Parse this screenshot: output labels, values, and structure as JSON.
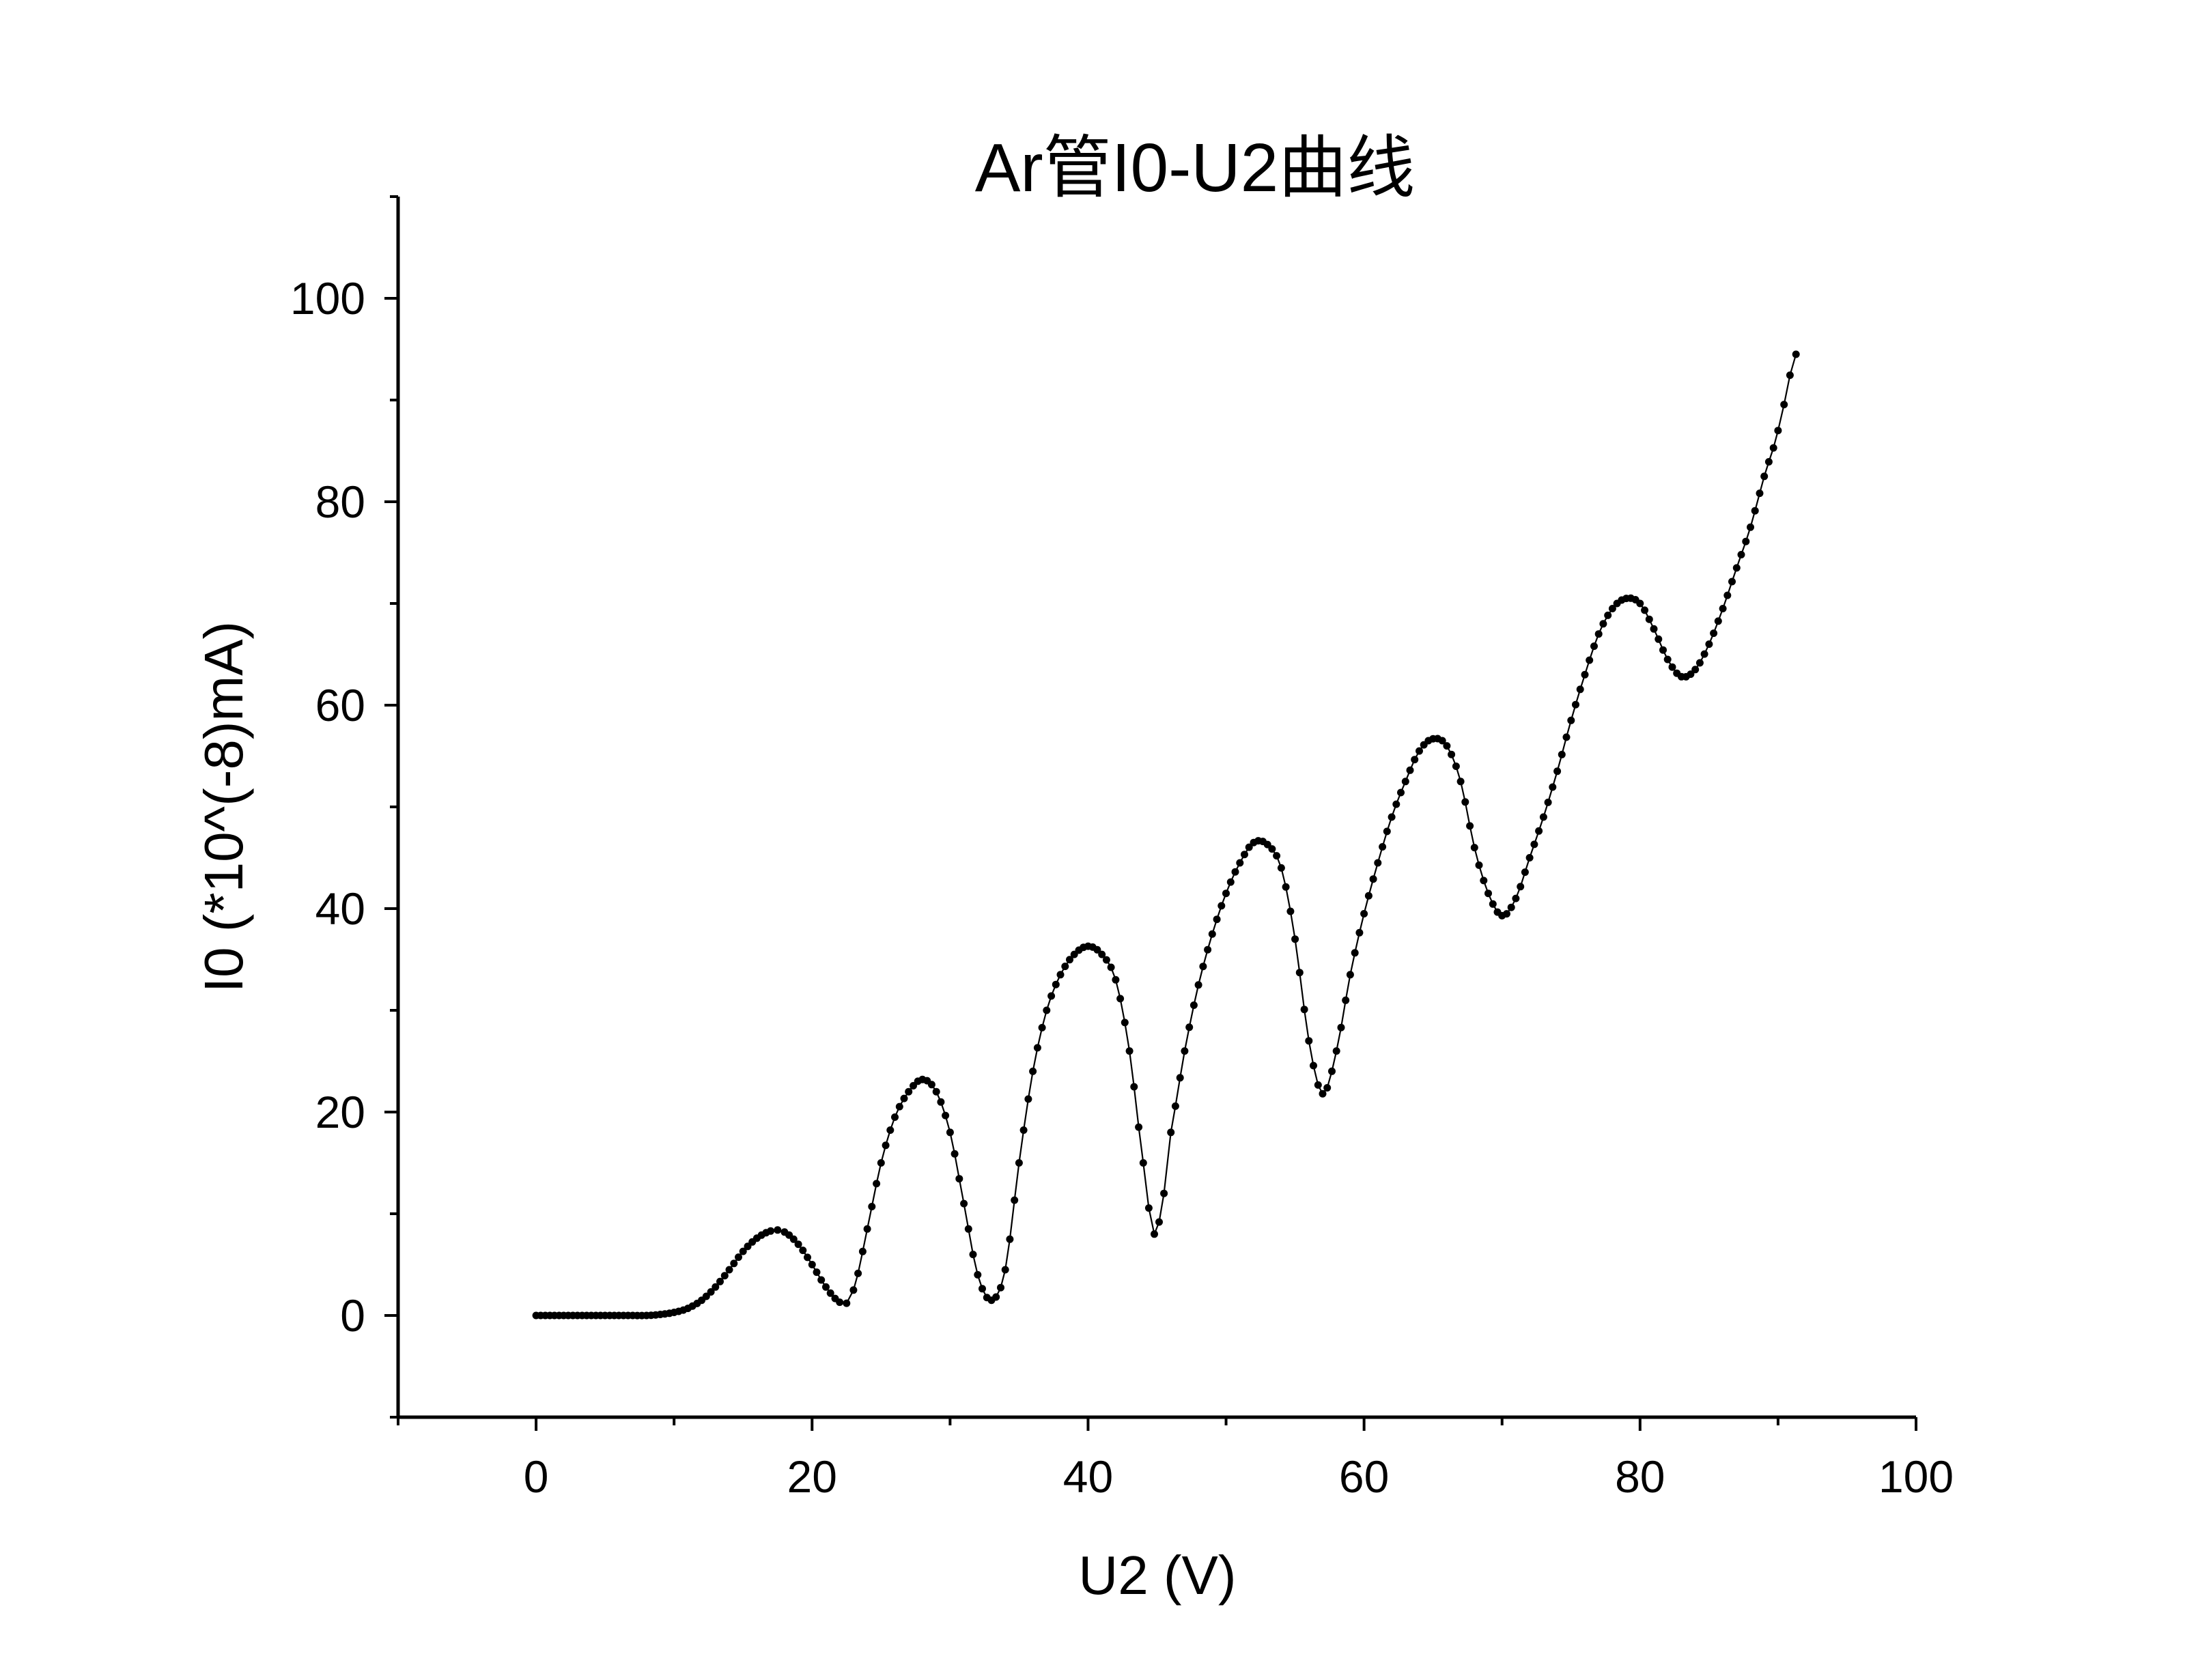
{
  "chart_data": {
    "type": "scatter",
    "title": "Ar管I0-U2曲线",
    "xlabel": "U2 (V)",
    "ylabel": "I0 (*10^(-8)mA)",
    "xlim": [
      -10,
      100
    ],
    "ylim": [
      -10,
      110
    ],
    "x_ticks": [
      "0",
      "20",
      "40",
      "60",
      "80",
      "100"
    ],
    "y_ticks": [
      "0",
      "20",
      "40",
      "60",
      "80",
      "100"
    ],
    "grid": false,
    "legend": "none",
    "marker_color": "#000000",
    "line_color": "#000000",
    "series": [
      {
        "x": [
          0,
          1,
          2,
          3,
          4,
          5,
          6,
          7,
          8,
          9,
          10,
          11,
          12,
          13,
          14,
          15,
          16,
          17,
          17.5,
          18,
          19,
          20,
          21,
          22,
          22.5,
          23,
          24,
          25,
          26,
          27,
          28,
          29,
          30,
          31,
          32,
          33,
          34,
          35,
          36,
          37,
          38,
          39,
          40,
          41,
          42,
          43,
          44,
          44.8,
          45.5,
          46,
          47,
          48,
          49,
          50,
          51,
          52,
          53,
          54,
          55,
          56,
          57,
          58,
          59,
          60,
          61,
          62,
          63,
          64,
          65,
          66,
          67,
          68,
          69,
          70,
          71,
          72,
          73,
          74,
          75,
          76,
          77,
          78,
          79,
          80,
          81,
          82,
          83,
          84,
          85,
          86,
          87,
          88,
          89,
          90,
          91.3
        ],
        "y": [
          0,
          0,
          0,
          0,
          0,
          0,
          0,
          0,
          0,
          0.1,
          0.3,
          0.7,
          1.5,
          2.8,
          4.5,
          6.3,
          7.6,
          8.3,
          8.4,
          8.2,
          7.0,
          5.0,
          2.8,
          1.3,
          1.2,
          2.5,
          8.5,
          15.0,
          19.5,
          22.0,
          23.2,
          22.0,
          18.0,
          11.0,
          4.0,
          1.5,
          4.5,
          15.0,
          24.0,
          30.0,
          33.5,
          35.5,
          36.3,
          35.5,
          33.0,
          26.0,
          15.0,
          8.0,
          12.0,
          18.0,
          26.0,
          32.5,
          37.5,
          41.5,
          44.5,
          46.5,
          46.3,
          44.0,
          37.0,
          27.0,
          21.8,
          26.0,
          33.5,
          39.5,
          44.5,
          49.0,
          52.5,
          55.5,
          56.7,
          56.0,
          52.5,
          46.0,
          41.5,
          39.3,
          41.0,
          45.0,
          49.0,
          53.5,
          58.5,
          63.0,
          67.0,
          69.5,
          70.5,
          70.0,
          67.5,
          64.5,
          62.8,
          63.5,
          66.0,
          69.5,
          73.5,
          77.5,
          82.5,
          87.0,
          94.5
        ]
      }
    ]
  }
}
